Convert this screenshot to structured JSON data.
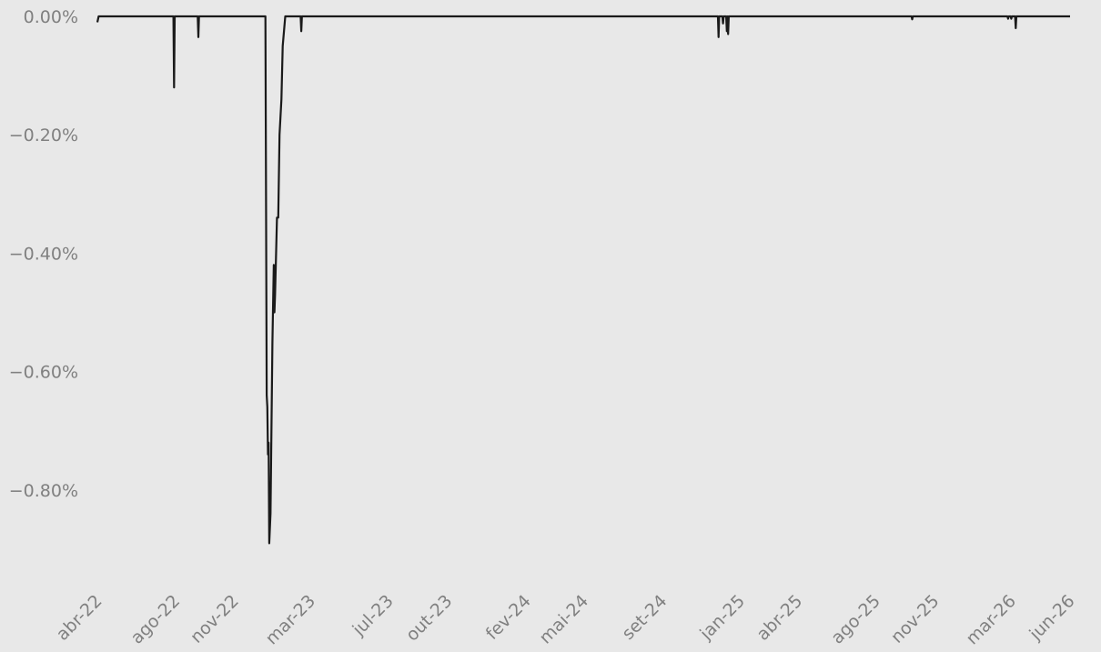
{
  "chart_data": {
    "type": "line",
    "title": "",
    "xlabel": "",
    "ylabel": "",
    "grid": false,
    "legend": "none",
    "xlim": [
      "2022-04-01",
      "2026-06-01"
    ],
    "ylim": [
      -0.95,
      0.0
    ],
    "x_ticks": [
      {
        "date": "2022-04-01",
        "label": "abr-22"
      },
      {
        "date": "2022-08-01",
        "label": "ago-22"
      },
      {
        "date": "2022-11-01",
        "label": "nov-22"
      },
      {
        "date": "2023-03-01",
        "label": "mar-23"
      },
      {
        "date": "2023-07-01",
        "label": "jul-23"
      },
      {
        "date": "2023-10-01",
        "label": "out-23"
      },
      {
        "date": "2024-02-01",
        "label": "fev-24"
      },
      {
        "date": "2024-05-01",
        "label": "mai-24"
      },
      {
        "date": "2024-09-01",
        "label": "set-24"
      },
      {
        "date": "2025-01-01",
        "label": "jan-25"
      },
      {
        "date": "2025-04-01",
        "label": "abr-25"
      },
      {
        "date": "2025-08-01",
        "label": "ago-25"
      },
      {
        "date": "2025-11-01",
        "label": "nov-25"
      },
      {
        "date": "2026-03-01",
        "label": "mar-26"
      },
      {
        "date": "2026-06-01",
        "label": "jun-26"
      }
    ],
    "y_ticks": [
      {
        "value": 0.0,
        "label": "0.00%"
      },
      {
        "value": -0.2,
        "label": "−0.20%"
      },
      {
        "value": -0.4,
        "label": "−0.40%"
      },
      {
        "value": -0.6,
        "label": "−0.60%"
      },
      {
        "value": -0.8,
        "label": "−0.80%"
      }
    ],
    "series": [
      {
        "color": "#1a1a1a",
        "points": [
          {
            "x": "2022-04-01",
            "y": -0.01
          },
          {
            "x": "2022-04-03",
            "y": 0.0
          },
          {
            "x": "2022-07-29",
            "y": 0.0
          },
          {
            "x": "2022-07-30",
            "y": -0.12
          },
          {
            "x": "2022-07-31",
            "y": 0.0
          },
          {
            "x": "2022-09-05",
            "y": 0.0
          },
          {
            "x": "2022-09-06",
            "y": -0.035
          },
          {
            "x": "2022-09-07",
            "y": 0.0
          },
          {
            "x": "2022-12-20",
            "y": 0.0
          },
          {
            "x": "2022-12-22",
            "y": -0.64
          },
          {
            "x": "2022-12-23",
            "y": -0.66
          },
          {
            "x": "2022-12-24",
            "y": -0.74
          },
          {
            "x": "2022-12-25",
            "y": -0.72
          },
          {
            "x": "2022-12-26",
            "y": -0.89
          },
          {
            "x": "2022-12-28",
            "y": -0.84
          },
          {
            "x": "2022-12-31",
            "y": -0.55
          },
          {
            "x": "2023-01-02",
            "y": -0.42
          },
          {
            "x": "2023-01-03",
            "y": -0.5
          },
          {
            "x": "2023-01-04",
            "y": -0.47
          },
          {
            "x": "2023-01-07",
            "y": -0.34
          },
          {
            "x": "2023-01-09",
            "y": -0.34
          },
          {
            "x": "2023-01-11",
            "y": -0.2
          },
          {
            "x": "2023-01-14",
            "y": -0.14
          },
          {
            "x": "2023-01-16",
            "y": -0.05
          },
          {
            "x": "2023-01-20",
            "y": 0.0
          },
          {
            "x": "2023-02-13",
            "y": 0.0
          },
          {
            "x": "2023-02-14",
            "y": -0.025
          },
          {
            "x": "2023-02-15",
            "y": 0.0
          },
          {
            "x": "2024-11-27",
            "y": 0.0
          },
          {
            "x": "2024-11-28",
            "y": -0.035
          },
          {
            "x": "2024-11-29",
            "y": 0.0
          },
          {
            "x": "2024-12-04",
            "y": 0.0
          },
          {
            "x": "2024-12-05",
            "y": -0.012
          },
          {
            "x": "2024-12-06",
            "y": 0.0
          },
          {
            "x": "2024-12-10",
            "y": 0.0
          },
          {
            "x": "2024-12-11",
            "y": -0.025
          },
          {
            "x": "2024-12-12",
            "y": 0.0
          },
          {
            "x": "2024-12-13",
            "y": -0.03
          },
          {
            "x": "2024-12-14",
            "y": 0.0
          },
          {
            "x": "2025-09-26",
            "y": 0.0
          },
          {
            "x": "2025-09-27",
            "y": -0.005
          },
          {
            "x": "2025-09-28",
            "y": 0.0
          },
          {
            "x": "2026-02-23",
            "y": 0.0
          },
          {
            "x": "2026-02-24",
            "y": -0.004
          },
          {
            "x": "2026-02-25",
            "y": 0.0
          },
          {
            "x": "2026-02-28",
            "y": 0.0
          },
          {
            "x": "2026-03-01",
            "y": -0.004
          },
          {
            "x": "2026-03-02",
            "y": 0.0
          },
          {
            "x": "2026-03-07",
            "y": 0.0
          },
          {
            "x": "2026-03-08",
            "y": -0.02
          },
          {
            "x": "2026-03-09",
            "y": 0.0
          },
          {
            "x": "2026-06-01",
            "y": 0.0
          }
        ]
      }
    ]
  }
}
